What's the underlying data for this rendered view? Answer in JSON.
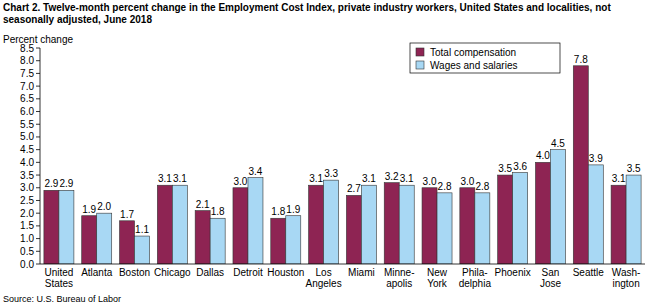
{
  "chart_data": {
    "type": "bar",
    "title": "Chart 2. Twelve-month percent change in the Employment Cost Index, private industry workers, United States and localities, not seasonally adjusted, June 2018",
    "ylabel": "Percent change",
    "source": "Source: U.S. Bureau of Labor",
    "categories": [
      "United\nStates",
      "Atlanta",
      "Boston",
      "Chicago",
      "Dallas",
      "Detroit",
      "Houston",
      "Los\nAngeles",
      "Miami",
      "Minne-\napolis",
      "New\nYork",
      "Phila-\ndelphia",
      "Phoenix",
      "San\nJose",
      "Seattle",
      "Wash-\nington"
    ],
    "series": [
      {
        "name": "Total compensation",
        "color": "#8e2453",
        "values": [
          2.9,
          1.9,
          1.7,
          3.1,
          2.1,
          3.0,
          1.8,
          3.1,
          2.7,
          3.2,
          3.0,
          3.0,
          3.5,
          4.0,
          7.8,
          3.1
        ],
        "value_labels": [
          "2.9",
          "1.9",
          "1.7",
          "3.1",
          "2.1",
          "3.0",
          "1.8",
          "3.1",
          "2.7",
          "3.2",
          "3.0",
          "3.0",
          "3.5",
          "4.0",
          "7.8",
          "3.1"
        ]
      },
      {
        "name": "Wages and salaries",
        "color": "#a8d8f4",
        "values": [
          2.9,
          2.0,
          1.1,
          3.1,
          1.8,
          3.4,
          1.9,
          3.3,
          3.1,
          3.1,
          2.8,
          2.8,
          3.6,
          4.5,
          3.9,
          3.5
        ],
        "value_labels": [
          "2.9",
          "2.0",
          "1.1",
          "3.1",
          "1.8",
          "3.4",
          "1.9",
          "3.3",
          "3.1",
          "3.1",
          "2.8",
          "2.8",
          "3.6",
          "4.5",
          "3.9",
          "3.5"
        ]
      }
    ],
    "ylim": [
      0,
      8.5
    ],
    "yticks": [
      {
        "value": 0,
        "label": "0.0"
      },
      {
        "value": 0.5,
        "label": "0.5"
      },
      {
        "value": 1,
        "label": "1.0"
      },
      {
        "value": 1.5,
        "label": "1.5"
      },
      {
        "value": 2,
        "label": "2.0"
      },
      {
        "value": 2.5,
        "label": "2.5"
      },
      {
        "value": 3,
        "label": "3.0"
      },
      {
        "value": 3.5,
        "label": "3.5"
      },
      {
        "value": 4,
        "label": "4.0"
      },
      {
        "value": 4.5,
        "label": "4.5"
      },
      {
        "value": 5,
        "label": "5.0"
      },
      {
        "value": 5.5,
        "label": "5.5"
      },
      {
        "value": 6,
        "label": "6.0"
      },
      {
        "value": 6.5,
        "label": "6.5"
      },
      {
        "value": 7,
        "label": "7.0"
      },
      {
        "value": 7.5,
        "label": "7.5"
      },
      {
        "value": 8,
        "label": "8.0"
      },
      {
        "value": 8.5,
        "label": "8.5"
      }
    ],
    "grid": false,
    "legend": "top-right",
    "data_labels": true
  }
}
